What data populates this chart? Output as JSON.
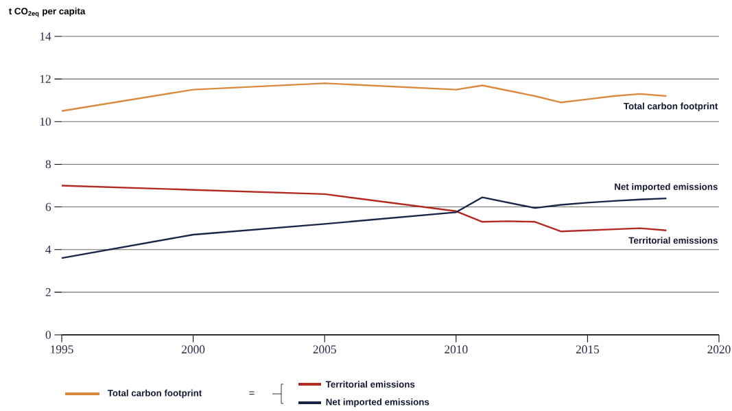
{
  "chart_data": {
    "type": "line",
    "ylabel": "t CO$_{2eq}$ per capita",
    "x": [
      1995,
      2000,
      2005,
      2010,
      2011,
      2012,
      2013,
      2014,
      2015,
      2016,
      2017,
      2018
    ],
    "series": [
      {
        "name": "Total carbon footprint",
        "color": "#d98a3e",
        "values": [
          10.5,
          11.5,
          11.8,
          11.5,
          11.7,
          11.45,
          11.2,
          10.9,
          11.05,
          11.2,
          11.3,
          11.2
        ]
      },
      {
        "name": "Territorial emissions",
        "color": "#b22a20",
        "values": [
          7.0,
          6.8,
          6.6,
          5.8,
          5.3,
          5.33,
          5.3,
          4.85,
          4.9,
          4.95,
          5.0,
          4.9
        ]
      },
      {
        "name": "Net imported emissions",
        "color": "#1a2548",
        "values": [
          3.6,
          4.7,
          5.2,
          5.75,
          6.45,
          6.2,
          5.95,
          6.1,
          6.2,
          6.28,
          6.35,
          6.4
        ]
      }
    ],
    "xlim": [
      1995,
      2020
    ],
    "ylim": [
      0,
      14
    ],
    "xticks": [
      1995,
      2000,
      2005,
      2010,
      2015,
      2020
    ],
    "yticks": [
      0,
      2,
      4,
      6,
      8,
      10,
      12,
      14
    ],
    "grid": "y",
    "legend": "bottom",
    "line_style": "solid",
    "annotations": [
      "="
    ]
  }
}
